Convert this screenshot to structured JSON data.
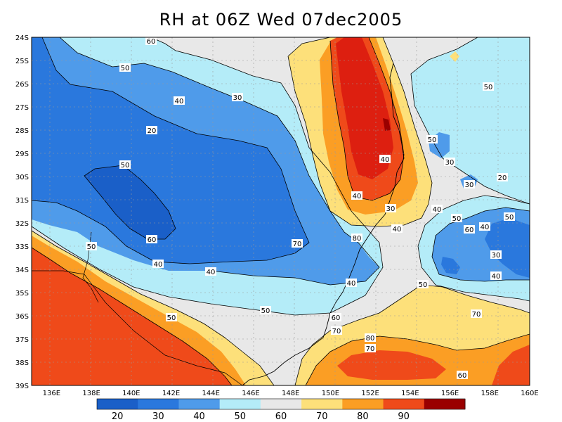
{
  "title": "RH at 06Z Wed 07dec2005",
  "colors": {
    "c20": "#1a5fc8",
    "c30": "#2a78dd",
    "c40": "#4f9bea",
    "c50": "#b4ecf8",
    "c60": "#e8e8e8",
    "c70": "#fde07a",
    "c80": "#fb9e24",
    "c90": "#ef4a1a",
    "c100": "#dd1f10",
    "cmax": "#9a0000"
  },
  "chart_data": {
    "type": "heatmap",
    "variable": "RH",
    "xlim": [
      135,
      160
    ],
    "ylim": [
      -39,
      -24
    ],
    "x_tick_labels": [
      "136E",
      "138E",
      "140E",
      "142E",
      "144E",
      "146E",
      "148E",
      "150E",
      "152E",
      "154E",
      "156E",
      "158E",
      "160E"
    ],
    "y_tick_labels": [
      "24S",
      "25S",
      "26S",
      "27S",
      "28S",
      "29S",
      "30S",
      "31S",
      "32S",
      "33S",
      "34S",
      "35S",
      "36S",
      "37S",
      "38S",
      "39S"
    ],
    "colorbar": {
      "levels": [
        20,
        30,
        40,
        50,
        60,
        70,
        80,
        90
      ],
      "labels": [
        "20",
        "30",
        "40",
        "50",
        "60",
        "70",
        "80",
        "90"
      ]
    },
    "contour_labels": [
      "60",
      "50",
      "40",
      "30",
      "20",
      "50",
      "50",
      "30",
      "20",
      "30",
      "40",
      "30",
      "40",
      "50",
      "60",
      "40",
      "80",
      "70",
      "60",
      "50",
      "40",
      "40",
      "50",
      "50",
      "40",
      "40",
      "50",
      "60",
      "70",
      "70",
      "80",
      "70",
      "60",
      "50",
      "40",
      "50",
      "40",
      "30"
    ]
  }
}
